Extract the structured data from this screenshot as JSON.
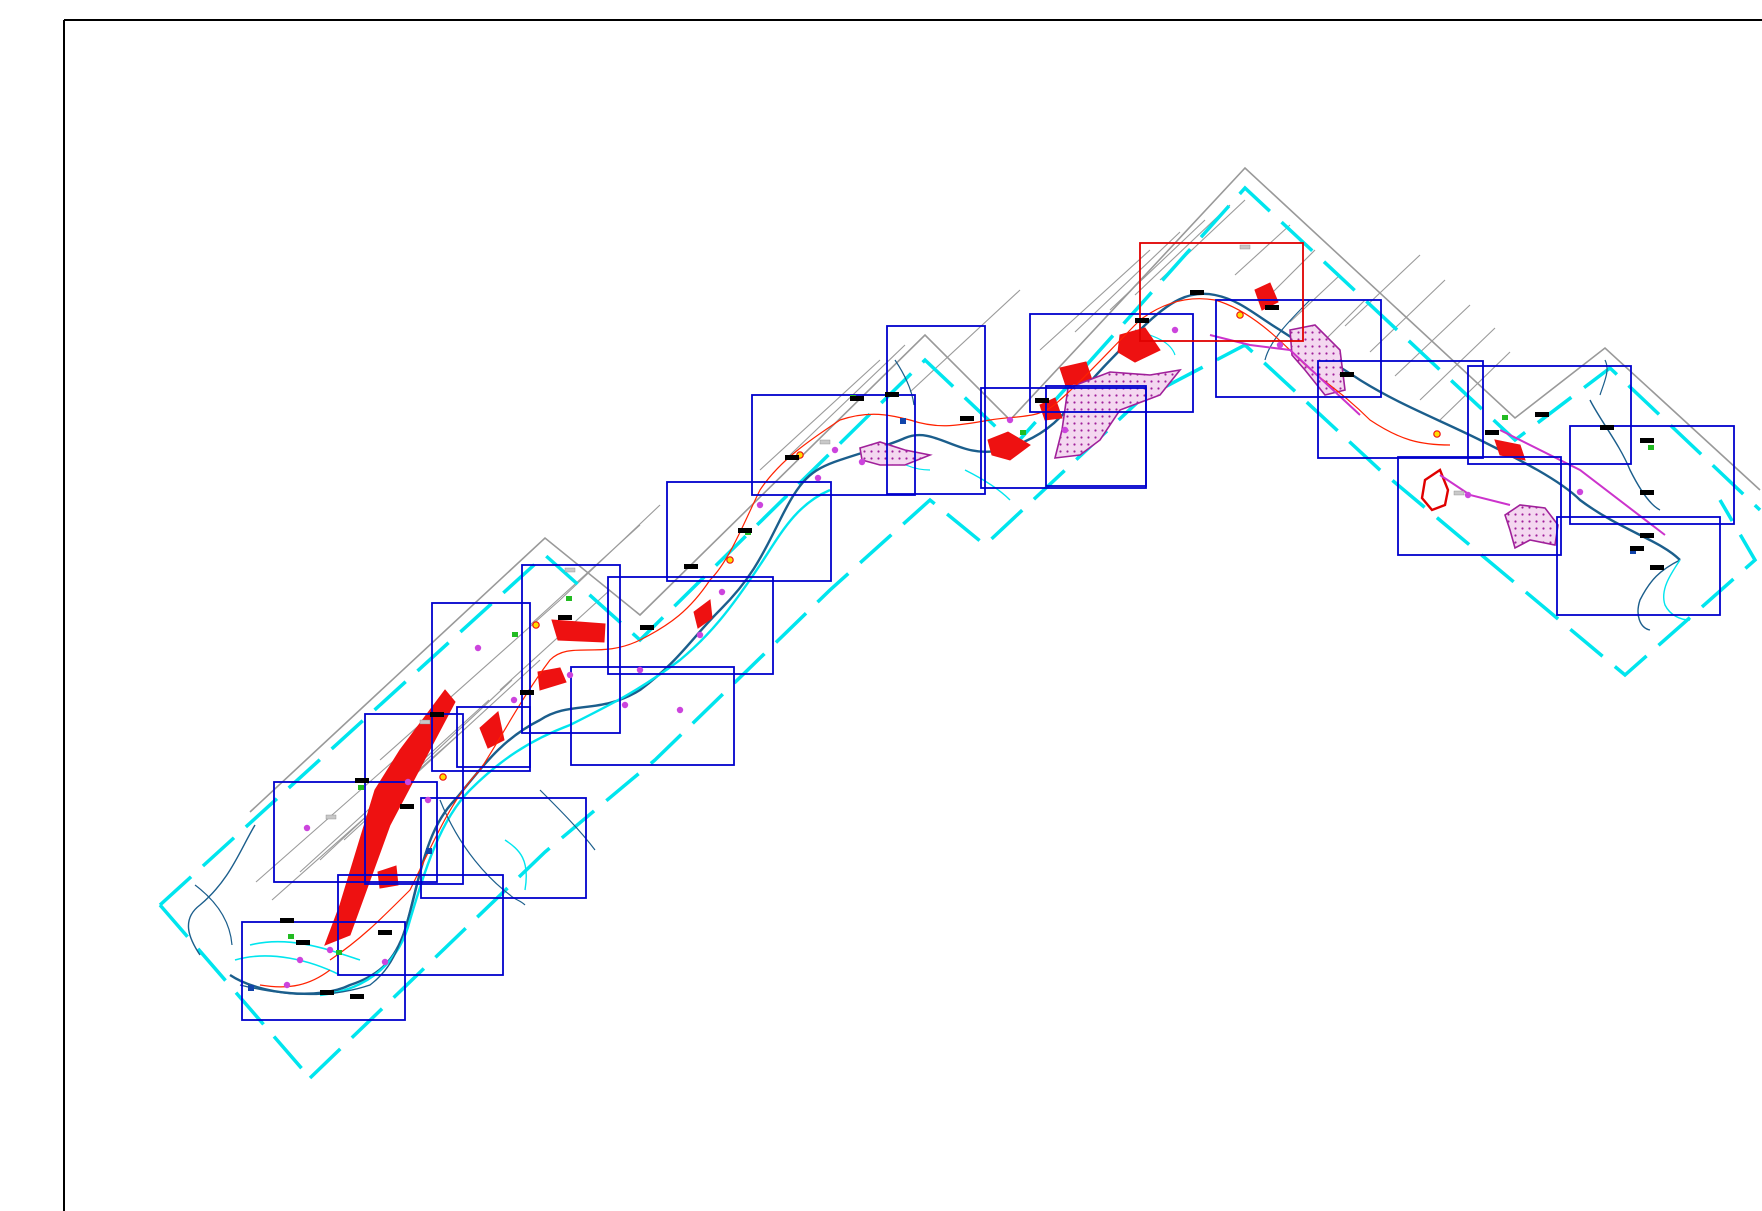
{
  "map": {
    "colors": {
      "frame": "#000000",
      "sheet_boundary": "#0000cc",
      "highlight_sheet": "#e00000",
      "corridor_dashed": "#00e5ee",
      "corridor_outline": "#999999",
      "corridor_hatch": "#999999",
      "river": "#1b5e8c",
      "river_secondary": "#00e5ee",
      "settlement": "#ee1111",
      "protected_zone": "#a0209a",
      "route": "#ff2200",
      "pipeline": "#cc33cc",
      "marker_violet": "#cc44dd",
      "marker_green": "#22bb22",
      "marker_blue": "#1144aa",
      "marker_yellow": "#ffdd00",
      "label_bg": "#000000",
      "grey_label_bg": "#c8c8c8"
    },
    "layers": [
      "frame",
      "corridor-outline",
      "corridor-hatch",
      "corridor-dashed",
      "rivers",
      "settlements",
      "protected-zones",
      "route",
      "sheet-boundaries",
      "markers",
      "labels"
    ]
  }
}
